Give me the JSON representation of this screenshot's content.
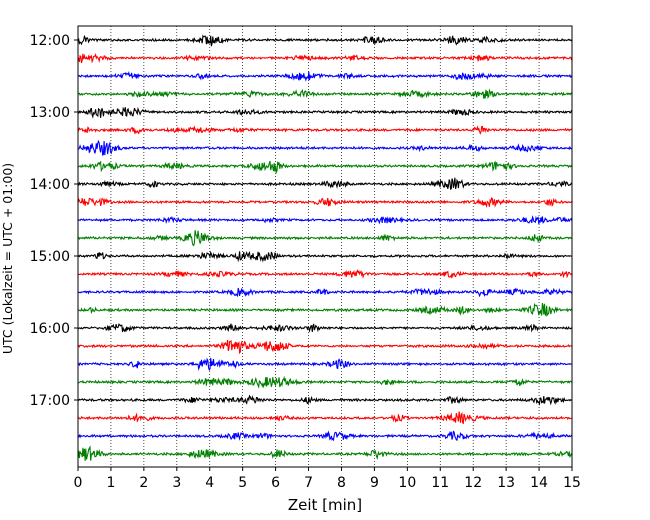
{
  "chart_data": {
    "type": "line",
    "title": "",
    "xlabel": "Zeit  [min]",
    "ylabel": "UTC (Lokalzeit = UTC + 01:00)",
    "xlim": [
      0,
      15
    ],
    "x_ticks": [
      0,
      1,
      2,
      3,
      4,
      5,
      6,
      7,
      8,
      9,
      10,
      11,
      12,
      13,
      14,
      15
    ],
    "x_tick_labels": [
      "0",
      "1",
      "2",
      "3",
      "4",
      "5",
      "6",
      "7",
      "8",
      "9",
      "10",
      "11",
      "12",
      "13",
      "14",
      "15"
    ],
    "y_ticks": [
      "12:00",
      "13:00",
      "14:00",
      "15:00",
      "16:00",
      "17:00"
    ],
    "y_start": "12:00",
    "y_end": "18:00",
    "y_direction": "descending",
    "grid": "vertical-dotted",
    "legend": "none",
    "trace_interval_minutes": 15,
    "trace_color_cycle": [
      "#000000",
      "#ff0000",
      "#0000ff",
      "#008000"
    ],
    "traces": [
      {
        "start": "12:00"
      },
      {
        "start": "12:15"
      },
      {
        "start": "12:30"
      },
      {
        "start": "12:45"
      },
      {
        "start": "13:00"
      },
      {
        "start": "13:15"
      },
      {
        "start": "13:30"
      },
      {
        "start": "13:45"
      },
      {
        "start": "14:00"
      },
      {
        "start": "14:15"
      },
      {
        "start": "14:30"
      },
      {
        "start": "14:45"
      },
      {
        "start": "15:00"
      },
      {
        "start": "15:15"
      },
      {
        "start": "15:30"
      },
      {
        "start": "15:45"
      },
      {
        "start": "16:00"
      },
      {
        "start": "16:15"
      },
      {
        "start": "16:30"
      },
      {
        "start": "16:45"
      },
      {
        "start": "17:00"
      },
      {
        "start": "17:15"
      },
      {
        "start": "17:30"
      },
      {
        "start": "17:45"
      }
    ]
  }
}
